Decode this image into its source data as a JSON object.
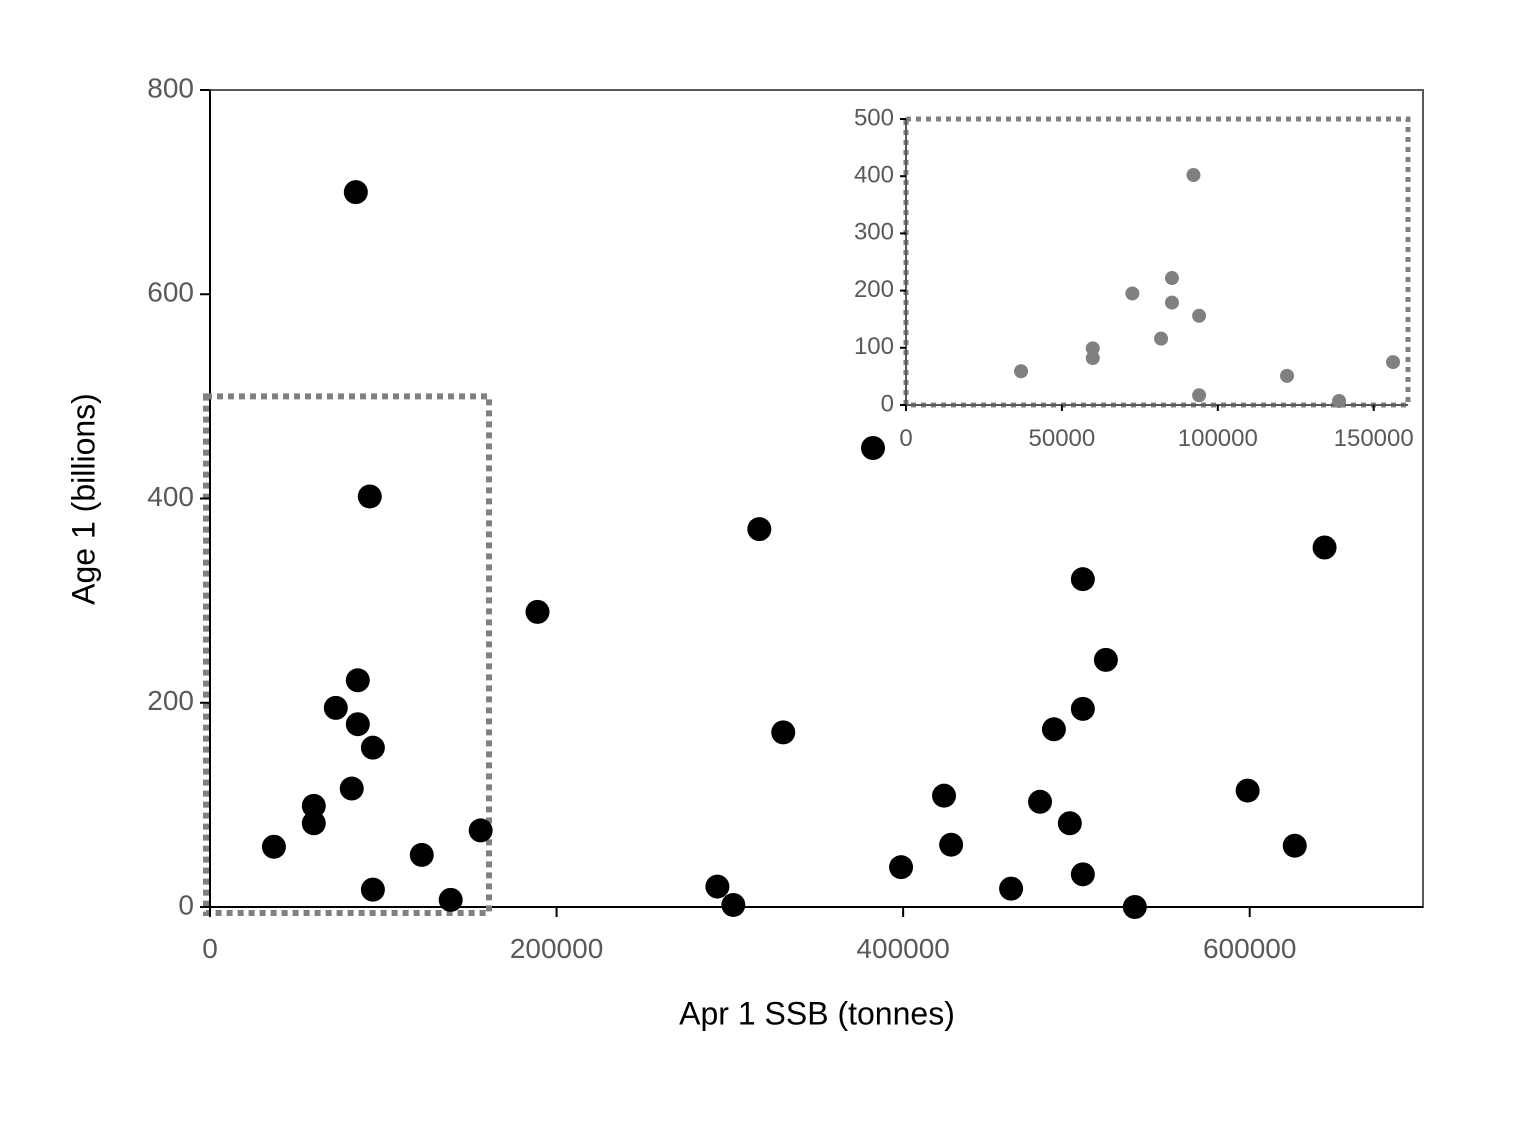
{
  "chart_data": [
    {
      "type": "scatter",
      "x_label": "Apr 1 SSB (tonnes)",
      "y_label": "Age 1 (billions)",
      "series": [
        {
          "color": "#000000",
          "x": [
            84150,
            92200,
            317000,
            189000,
            643200,
            503700,
            517000,
            85300,
            72600,
            85300,
            94000,
            503700,
            330800,
            487000,
            81800,
            59900,
            59900,
            423600,
            479000,
            496200,
            598800,
            36900,
            156200,
            122200,
            427700,
            626000,
            398800,
            503700,
            94000,
            138900,
            292800,
            302000,
            462300,
            533700
          ],
          "values": [
            700,
            402,
            370,
            289,
            352,
            321,
            242,
            222,
            195,
            179,
            156,
            194,
            171,
            174,
            116,
            99,
            82,
            109,
            103,
            82,
            114,
            59,
            75,
            51,
            61,
            60,
            39,
            32,
            17,
            7,
            20,
            2,
            18,
            0
          ]
        }
      ],
      "xlim": [
        0,
        700000
      ],
      "ylim": [
        0,
        800
      ],
      "xticks": [
        0,
        200000,
        400000,
        600000
      ],
      "yticks": [
        0,
        200,
        400,
        600,
        800
      ]
    },
    {
      "type": "scatter",
      "series": [
        {
          "color": "#808080",
          "x": [
            92200,
            85300,
            72600,
            85300,
            94000,
            81800,
            59900,
            59900,
            36900,
            156200,
            122200,
            94000,
            138900
          ],
          "values": [
            402,
            222,
            195,
            179,
            156,
            116,
            99,
            82,
            59,
            75,
            51,
            17,
            7
          ]
        }
      ],
      "xlim": [
        0,
        161000
      ],
      "ylim": [
        0,
        500
      ],
      "xticks": [
        0,
        50000,
        100000,
        150000
      ],
      "yticks": [
        0,
        100,
        200,
        300,
        400,
        500
      ]
    }
  ]
}
